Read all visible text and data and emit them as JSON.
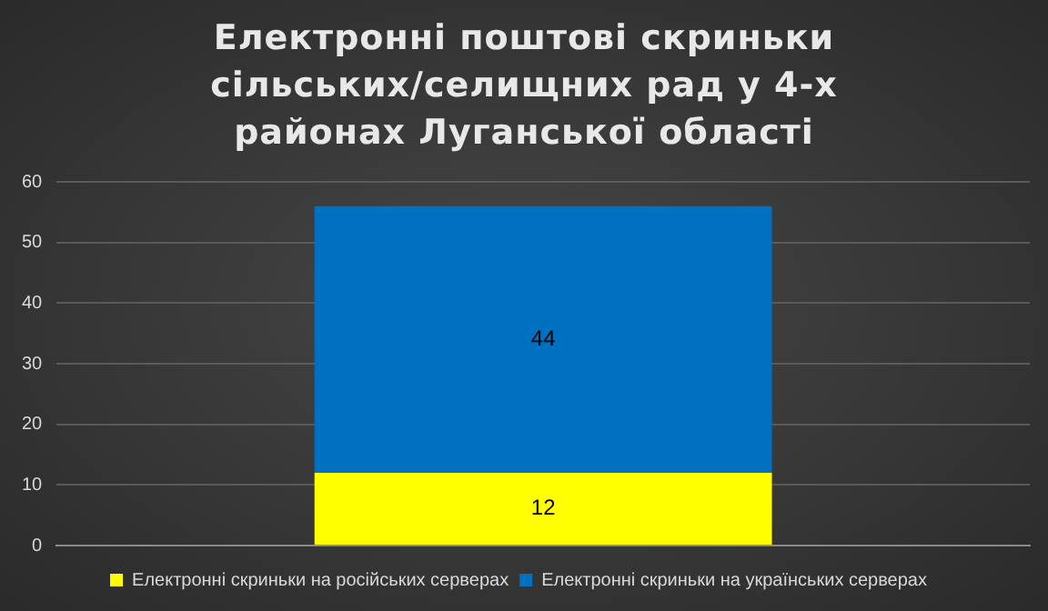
{
  "chart_data": {
    "type": "bar",
    "title": "Електронні  поштові  скриньки сільських/селищних  рад у 4-х районах Луганської  області",
    "categories": [
      null
    ],
    "stacked": true,
    "ylim": [
      0,
      60
    ],
    "yticks": [
      0,
      10,
      20,
      30,
      40,
      50,
      60
    ],
    "grid": "y",
    "legend": "bottom",
    "data_labels": true,
    "series": [
      {
        "name": "Електронні скриньки на російських серверах",
        "color": "#ffff00",
        "values": [
          12
        ]
      },
      {
        "name": "Електронні скриньки на українських серверах",
        "color": "#0070c0",
        "values": [
          44
        ]
      }
    ]
  }
}
